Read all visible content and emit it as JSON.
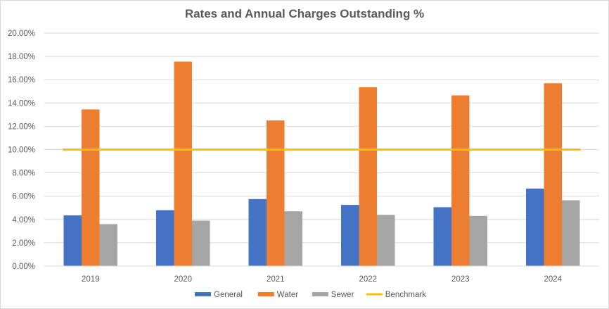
{
  "chart_data": {
    "type": "bar",
    "title": "Rates and Annual Charges Outstanding %",
    "xlabel": "",
    "ylabel": "",
    "categories": [
      "2019",
      "2020",
      "2021",
      "2022",
      "2023",
      "2024"
    ],
    "ylim": [
      0,
      20
    ],
    "y_ticks": [
      "0.00%",
      "2.00%",
      "4.00%",
      "6.00%",
      "8.00%",
      "10.00%",
      "12.00%",
      "14.00%",
      "16.00%",
      "18.00%",
      "20.00%"
    ],
    "grid": true,
    "legend_position": "bottom",
    "series": [
      {
        "name": "General",
        "kind": "bar",
        "color": "#4472c4",
        "values": [
          4.35,
          4.8,
          5.75,
          5.25,
          5.05,
          6.65
        ]
      },
      {
        "name": "Water",
        "kind": "bar",
        "color": "#ed7d31",
        "values": [
          13.45,
          17.55,
          12.5,
          15.35,
          14.65,
          15.7
        ]
      },
      {
        "name": "Sewer",
        "kind": "bar",
        "color": "#a5a5a5",
        "values": [
          3.6,
          3.9,
          4.7,
          4.4,
          4.3,
          5.65
        ]
      },
      {
        "name": "Benchmark",
        "kind": "line",
        "color": "#ffc000",
        "values": [
          10,
          10,
          10,
          10,
          10,
          10
        ]
      }
    ]
  }
}
